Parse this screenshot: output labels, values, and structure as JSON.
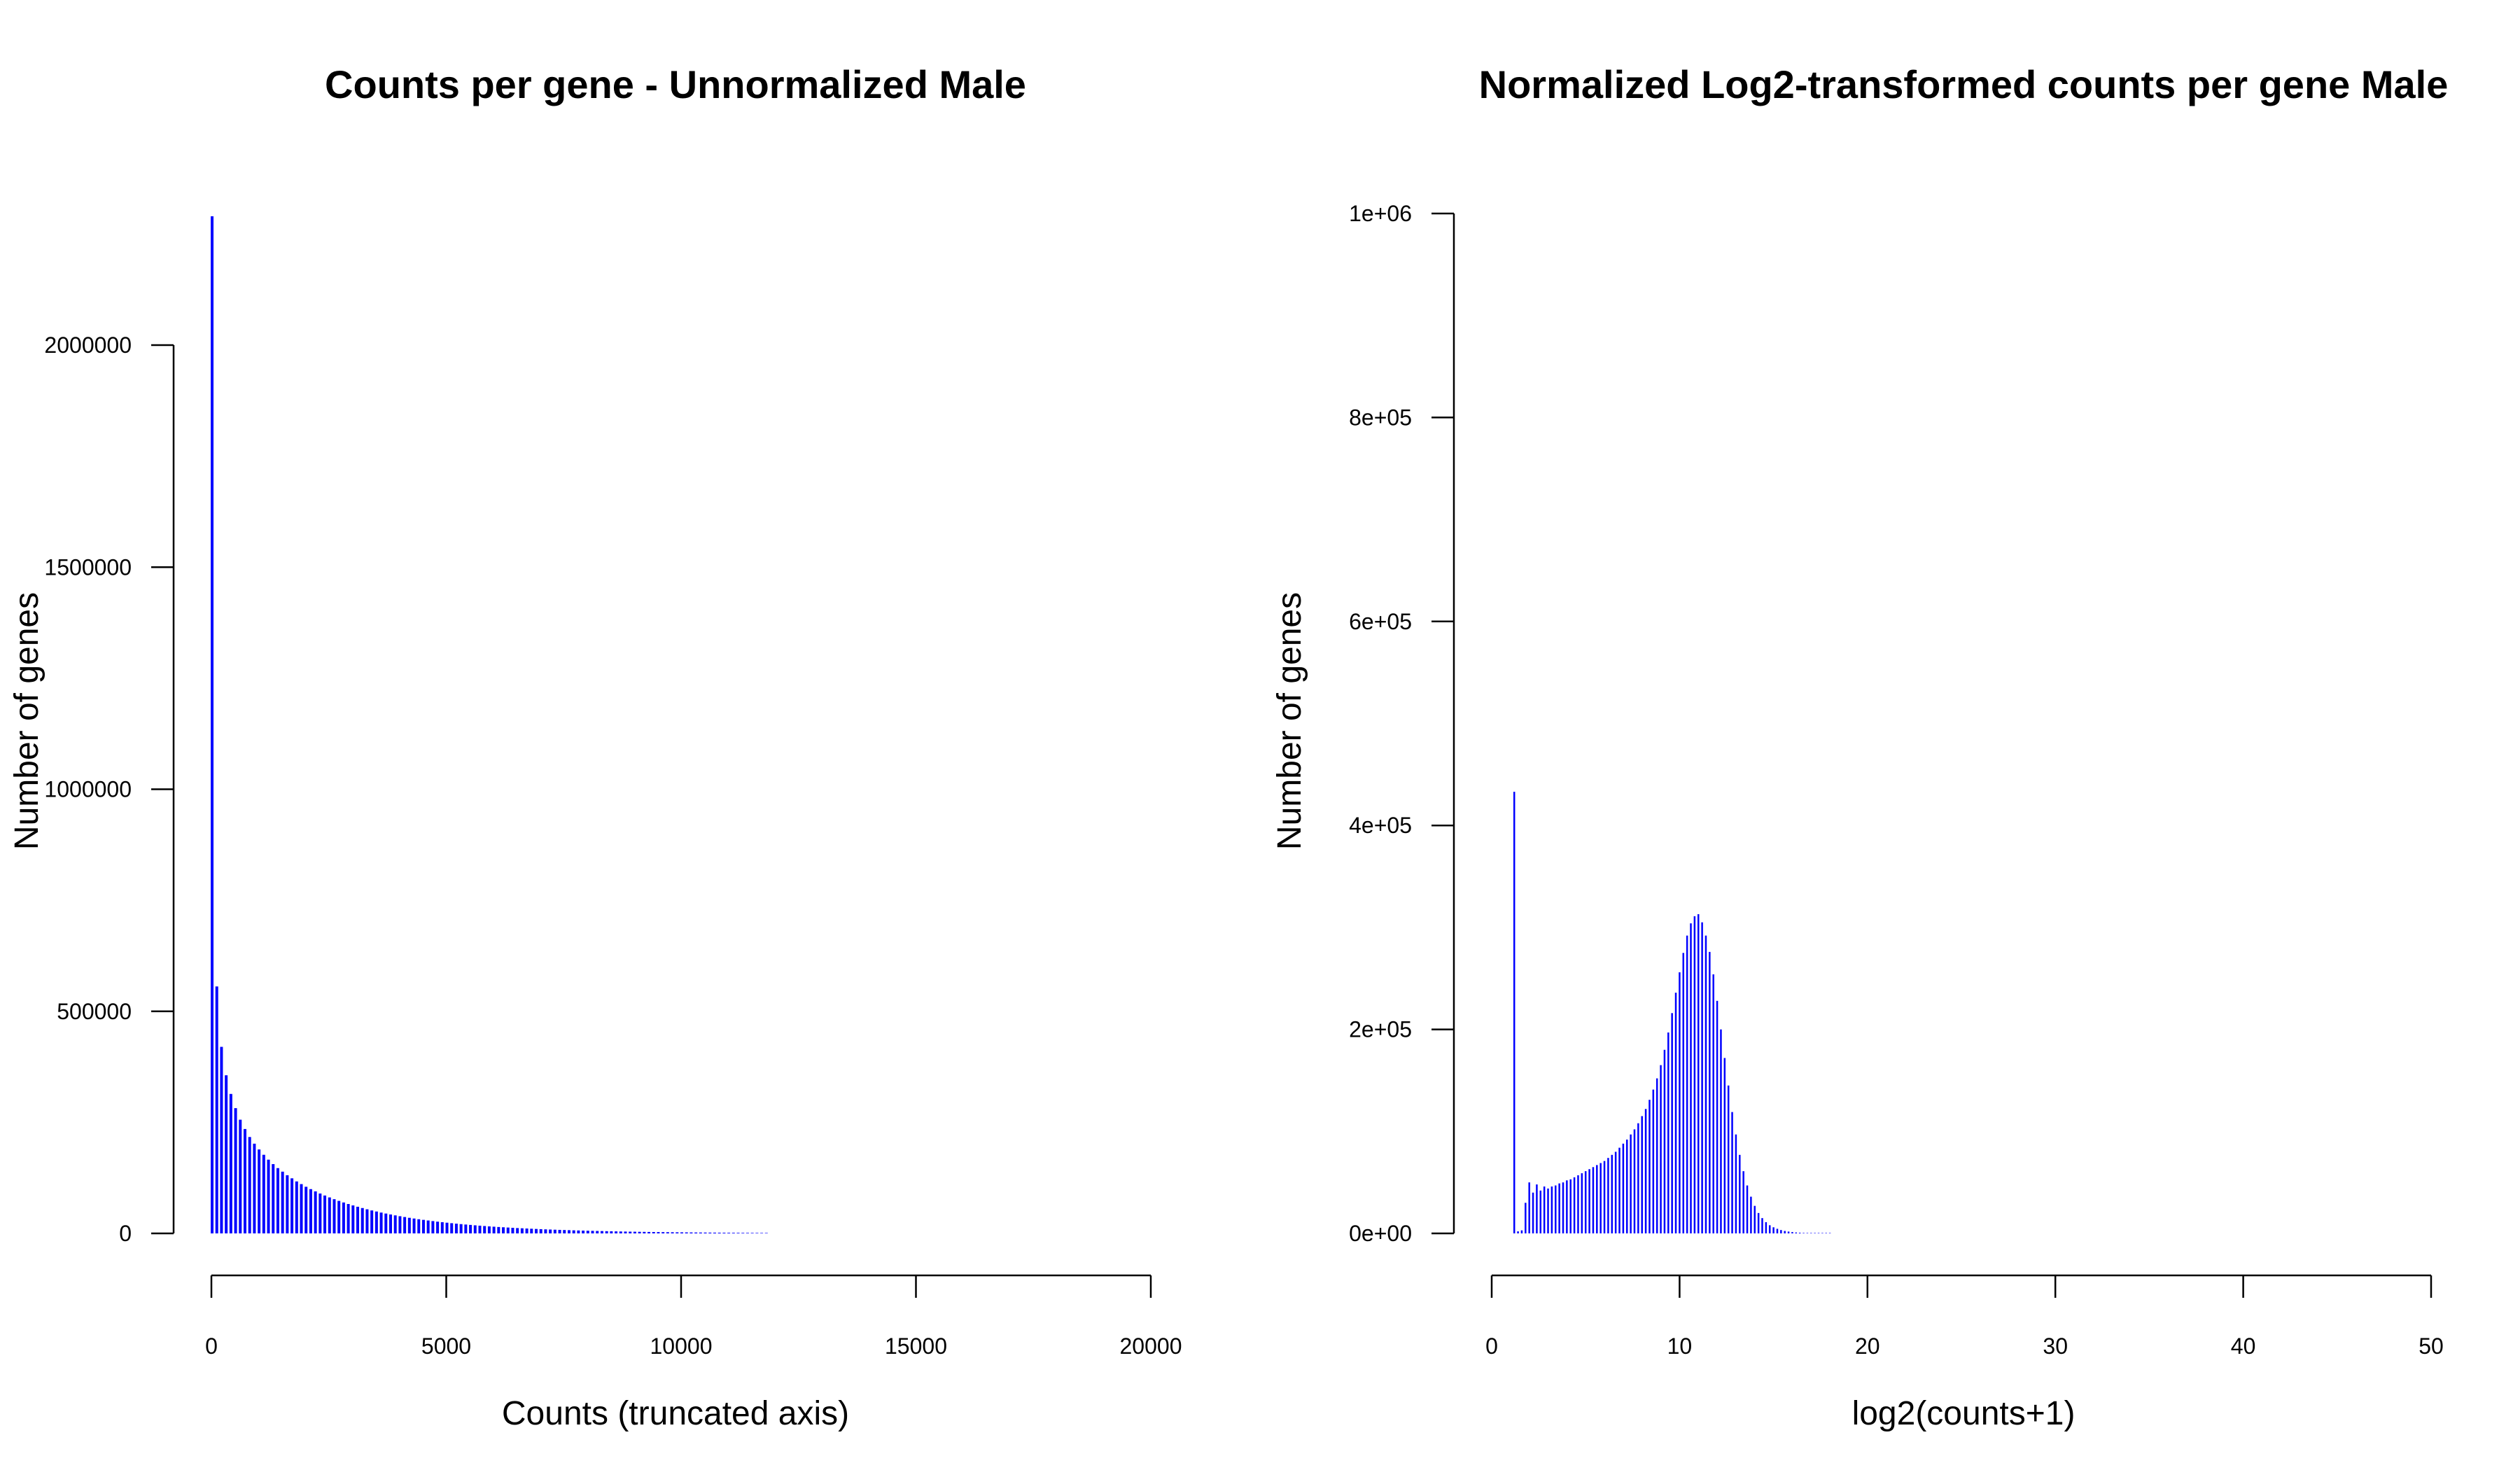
{
  "charts": {
    "chart_data": [
      {
        "type": "bar",
        "title": "Counts per gene - Unnormalized Male",
        "xlabel": "Counts (truncated axis)",
        "ylabel": "Number of genes",
        "xlim": [
          0,
          20000
        ],
        "ylim": [
          0,
          2290000
        ],
        "x_ticks": [
          0,
          5000,
          10000,
          15000,
          20000
        ],
        "x_tick_labels": [
          "0",
          "5000",
          "10000",
          "15000",
          "20000"
        ],
        "y_ticks": [
          0,
          500000,
          1000000,
          1500000,
          2000000
        ],
        "y_tick_labels": [
          "0",
          "500000",
          "1000000",
          "1500000",
          "2000000"
        ],
        "bar_color": "#0000ff",
        "bar_spacing": 100,
        "x": [
          0,
          100,
          200,
          300,
          400,
          500,
          600,
          700,
          800,
          900,
          1000,
          1100,
          1200,
          1300,
          1400,
          1500,
          1600,
          1700,
          1800,
          1900,
          2000,
          2100,
          2200,
          2300,
          2400,
          2500,
          2600,
          2700,
          2800,
          2900,
          3000,
          3100,
          3200,
          3300,
          3400,
          3500,
          3600,
          3700,
          3800,
          3900,
          4000,
          4100,
          4200,
          4300,
          4400,
          4500,
          4600,
          4700,
          4800,
          4900,
          5000,
          5100,
          5200,
          5300,
          5400,
          5500,
          5600,
          5700,
          5800,
          5900,
          6000,
          6100,
          6200,
          6300,
          6400,
          6500,
          6600,
          6700,
          6800,
          6900,
          7000,
          7100,
          7200,
          7300,
          7400,
          7500,
          7600,
          7700,
          7800,
          7900,
          8000,
          8100,
          8200,
          8300,
          8400,
          8500,
          8600,
          8700,
          8800,
          8900,
          9000,
          9100,
          9200,
          9300,
          9400,
          9500,
          9600,
          9700,
          9800,
          9900,
          10000,
          10100,
          10200,
          10300,
          10400,
          10500,
          10600,
          10700,
          10800,
          10900,
          11000,
          11100,
          11200,
          11300,
          11400,
          11500,
          11600,
          11700,
          11800
        ],
        "values": [
          2290000,
          556000,
          420000,
          356000,
          314000,
          282000,
          256000,
          235000,
          217000,
          202000,
          189000,
          177000,
          166000,
          156000,
          147000,
          139000,
          131000,
          124000,
          117000,
          111000,
          105000,
          99700,
          94600,
          89800,
          85300,
          81000,
          77000,
          73200,
          69600,
          66200,
          63000,
          60000,
          57100,
          54300,
          51700,
          49300,
          46900,
          44700,
          42600,
          40600,
          38700,
          36900,
          35100,
          33500,
          31900,
          30500,
          29100,
          27700,
          26400,
          25200,
          24100,
          23000,
          21900,
          20900,
          20000,
          19100,
          18200,
          17400,
          16600,
          15800,
          15100,
          14400,
          13800,
          13200,
          12600,
          12000,
          11500,
          11000,
          10500,
          10000,
          9560,
          9130,
          8720,
          8330,
          7950,
          7590,
          7250,
          6920,
          6610,
          6310,
          6020,
          5750,
          5490,
          5240,
          5000,
          4770,
          4550,
          4340,
          4140,
          3950,
          3770,
          3590,
          3430,
          3270,
          3120,
          2970,
          2830,
          2700,
          2570,
          2450,
          2340,
          2230,
          2120,
          2020,
          1930,
          1840,
          1750,
          1670,
          1590,
          1510,
          1440,
          1370,
          1310,
          1240,
          1180,
          1130,
          1070,
          1020,
          970
        ]
      },
      {
        "type": "bar",
        "title": "Normalized Log2-transformed counts per gene Male",
        "xlabel": "log2(counts+1)",
        "ylabel": "Number of genes",
        "xlim": [
          0,
          50
        ],
        "ylim": [
          0,
          1000000
        ],
        "x_ticks": [
          0,
          10,
          20,
          30,
          40,
          50
        ],
        "x_tick_labels": [
          "0",
          "10",
          "20",
          "30",
          "40",
          "50"
        ],
        "y_ticks": [
          0,
          200000,
          400000,
          600000,
          800000,
          1000000
        ],
        "y_tick_labels": [
          "0e+00",
          "2e+05",
          "4e+05",
          "6e+05",
          "8e+05",
          "1e+06"
        ],
        "bar_color": "#0000ff",
        "bar_spacing": 0.2,
        "x": [
          1.2,
          1.4,
          1.6,
          1.8,
          2.0,
          2.2,
          2.4,
          2.6,
          2.8,
          3.0,
          3.2,
          3.4,
          3.6,
          3.8,
          4.0,
          4.2,
          4.4,
          4.6,
          4.8,
          5.0,
          5.2,
          5.4,
          5.6,
          5.8,
          6.0,
          6.2,
          6.4,
          6.6,
          6.8,
          7.0,
          7.2,
          7.4,
          7.6,
          7.8,
          8.0,
          8.2,
          8.4,
          8.6,
          8.8,
          9.0,
          9.2,
          9.4,
          9.6,
          9.8,
          10.0,
          10.2,
          10.4,
          10.6,
          10.8,
          11.0,
          11.2,
          11.4,
          11.6,
          11.8,
          12.0,
          12.2,
          12.4,
          12.6,
          12.8,
          13.0,
          13.2,
          13.4,
          13.6,
          13.8,
          14.0,
          14.2,
          14.4,
          14.6,
          14.8,
          15.0,
          15.2,
          15.4,
          15.6,
          15.8,
          16.0,
          16.2,
          16.4,
          16.6,
          16.8,
          17.0,
          17.2,
          17.4,
          17.6,
          17.8,
          18.0
        ],
        "values": [
          433000,
          2000,
          3000,
          30000,
          50000,
          40000,
          48000,
          42000,
          46000,
          44000,
          46000,
          47000,
          49000,
          50000,
          52000,
          53000,
          55000,
          57000,
          59000,
          61000,
          63000,
          65000,
          67000,
          69000,
          71000,
          74000,
          77000,
          80000,
          84000,
          88000,
          92000,
          97000,
          102000,
          108000,
          115000,
          122000,
          131000,
          141000,
          152000,
          165000,
          180000,
          197000,
          216000,
          236000,
          256000,
          275000,
          292000,
          304000,
          311000,
          313000,
          305000,
          292000,
          276000,
          254000,
          228000,
          200000,
          172000,
          145000,
          119000,
          97000,
          77000,
          61000,
          47000,
          36000,
          27000,
          20000,
          15000,
          11000,
          8000,
          6000,
          4500,
          3300,
          2400,
          1800,
          1300,
          900,
          650,
          450,
          300,
          200,
          150,
          100,
          60,
          40,
          20
        ]
      }
    ]
  }
}
